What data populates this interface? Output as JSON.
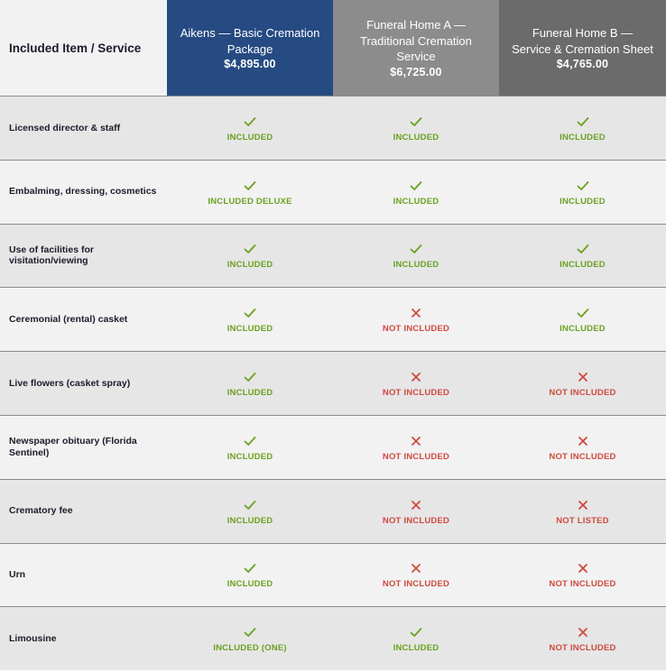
{
  "header": {
    "first_col": "Included Item / Service",
    "columns": [
      {
        "name": "Aikens — Basic Cremation Package",
        "price": "$4,895.00"
      },
      {
        "name": "Funeral Home A — Traditional Cremation Service",
        "price": "$6,725.00"
      },
      {
        "name": "Funeral Home B — Service & Cremation Sheet",
        "price": "$4,765.00"
      }
    ]
  },
  "colors": {
    "aikens_header": "#264b82",
    "home_a_header": "#8c8c8c",
    "home_b_header": "#6b6b6b",
    "included": "#6aa121",
    "not_included": "#cf4a3e"
  },
  "rows": [
    {
      "label": "Licensed director & staff",
      "cells": [
        {
          "icon": "check-icon",
          "text": "INCLUDED"
        },
        {
          "icon": "check-icon",
          "text": "INCLUDED"
        },
        {
          "icon": "check-icon",
          "text": "INCLUDED"
        }
      ]
    },
    {
      "label": "Embalming, dressing, cosmetics",
      "cells": [
        {
          "icon": "check-icon",
          "text": "INCLUDED DELUXE"
        },
        {
          "icon": "check-icon",
          "text": "INCLUDED"
        },
        {
          "icon": "check-icon",
          "text": "INCLUDED"
        }
      ]
    },
    {
      "label": "Use of facilities for visitation/viewing",
      "cells": [
        {
          "icon": "check-icon",
          "text": "INCLUDED"
        },
        {
          "icon": "check-icon",
          "text": "INCLUDED"
        },
        {
          "icon": "check-icon",
          "text": "INCLUDED"
        }
      ]
    },
    {
      "label": "Ceremonial (rental) casket",
      "cells": [
        {
          "icon": "check-icon",
          "text": "INCLUDED"
        },
        {
          "icon": "cross-icon",
          "text": "NOT INCLUDED"
        },
        {
          "icon": "check-icon",
          "text": "INCLUDED"
        }
      ]
    },
    {
      "label": "Live flowers (casket spray)",
      "cells": [
        {
          "icon": "check-icon",
          "text": "INCLUDED"
        },
        {
          "icon": "cross-icon",
          "text": "NOT INCLUDED"
        },
        {
          "icon": "cross-icon",
          "text": "NOT INCLUDED"
        }
      ]
    },
    {
      "label": "Newspaper obituary (Florida Sentinel)",
      "cells": [
        {
          "icon": "check-icon",
          "text": "INCLUDED"
        },
        {
          "icon": "cross-icon",
          "text": "NOT INCLUDED"
        },
        {
          "icon": "cross-icon",
          "text": "NOT INCLUDED"
        }
      ]
    },
    {
      "label": "Crematory fee",
      "cells": [
        {
          "icon": "check-icon",
          "text": "INCLUDED"
        },
        {
          "icon": "cross-icon",
          "text": "NOT INCLUDED"
        },
        {
          "icon": "cross-icon",
          "text": "NOT LISTED"
        }
      ]
    },
    {
      "label": "Urn",
      "cells": [
        {
          "icon": "check-icon",
          "text": "INCLUDED"
        },
        {
          "icon": "cross-icon",
          "text": "NOT INCLUDED"
        },
        {
          "icon": "cross-icon",
          "text": "NOT INCLUDED"
        }
      ]
    },
    {
      "label": "Limousine",
      "cells": [
        {
          "icon": "check-icon",
          "text": "INCLUDED (ONE)"
        },
        {
          "icon": "check-icon",
          "text": "INCLUDED"
        },
        {
          "icon": "cross-icon",
          "text": "NOT INCLUDED"
        }
      ]
    }
  ]
}
